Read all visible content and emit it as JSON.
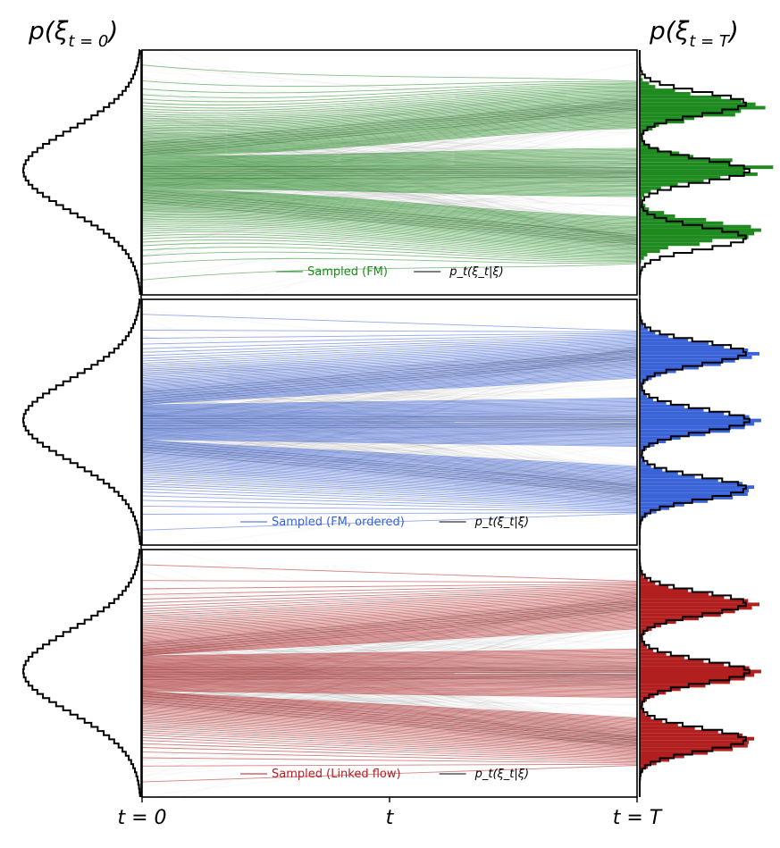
{
  "marginals": {
    "left_title": "p(ξ",
    "left_sub": "t = 0",
    "left_close": ")",
    "right_title": "p(ξ",
    "right_sub": "t = T",
    "right_close": ")"
  },
  "x_ticks": [
    {
      "label": "t = 0",
      "pos": 0
    },
    {
      "label": "t",
      "pos": 0.5
    },
    {
      "label": "t = T",
      "pos": 1
    }
  ],
  "reference_legend": {
    "base": "p",
    "sub": "t",
    "args": "(ξ",
    "args_sub": "t",
    "args_tail": "|ξ)"
  },
  "chart_data": {
    "type": "line",
    "description_free": true,
    "x_range": [
      0,
      1
    ],
    "y_range": [
      -1,
      1
    ],
    "source_density": {
      "type": "gaussian",
      "mean": 0,
      "std": 0.33
    },
    "target_density": {
      "type": "mixture",
      "means": [
        -0.55,
        0,
        0.55
      ],
      "std": 0.09,
      "weights": [
        0.33,
        0.34,
        0.33
      ]
    },
    "panels": [
      {
        "legend": "Sampled (FM)",
        "color": "#1f8a1f",
        "reference_label": "p_t(ξ_t|ξ)",
        "mode": "curved"
      },
      {
        "legend": "Sampled (FM, ordered)",
        "color": "#3a63d8",
        "reference_label": "p_t(ξ_t|ξ)",
        "mode": "ordered"
      },
      {
        "legend": "Sampled (Linked flow)",
        "color": "#b21f1f",
        "reference_label": "p_t(ξ_t|ξ)",
        "mode": "linked"
      }
    ]
  }
}
